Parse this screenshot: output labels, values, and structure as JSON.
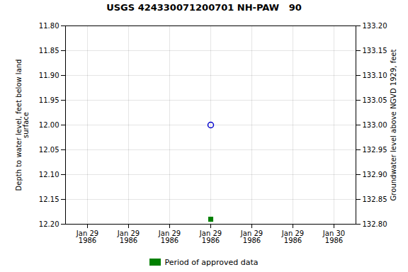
{
  "chart_data": {
    "type": "scatter",
    "title": "USGS 424330071200701 NH-PAW   90",
    "categories": [
      "Jan 29\n1986",
      "Jan 29\n1986",
      "Jan 29\n1986",
      "Jan 29\n1986",
      "Jan 29\n1986",
      "Jan 29\n1986",
      "Jan 30\n1986"
    ],
    "ylabel": "Depth to water level, feet below land\nsurface",
    "y2label": "Groundwater level above NGVD 1929, feet",
    "ylim": [
      12.2,
      11.8
    ],
    "yticks": [
      {
        "value": 11.8,
        "label": "11.80"
      },
      {
        "value": 11.85,
        "label": "11.85"
      },
      {
        "value": 11.9,
        "label": "11.90"
      },
      {
        "value": 11.95,
        "label": "11.95"
      },
      {
        "value": 12.0,
        "label": "12.00"
      },
      {
        "value": 12.05,
        "label": "12.05"
      },
      {
        "value": 12.1,
        "label": "12.10"
      },
      {
        "value": 12.15,
        "label": "12.15"
      },
      {
        "value": 12.2,
        "label": "12.20"
      }
    ],
    "y2lim": [
      132.8,
      133.2
    ],
    "y2ticks": [
      {
        "value": 132.8,
        "label": "132.80"
      },
      {
        "value": 132.85,
        "label": "132.85"
      },
      {
        "value": 132.9,
        "label": "132.90"
      },
      {
        "value": 132.95,
        "label": "132.95"
      },
      {
        "value": 133.0,
        "label": "133.00"
      },
      {
        "value": 133.05,
        "label": "133.05"
      },
      {
        "value": 133.1,
        "label": "133.10"
      },
      {
        "value": 133.15,
        "label": "133.15"
      },
      {
        "value": 133.2,
        "label": "133.20"
      }
    ],
    "series": [
      {
        "color": "#0000CC",
        "marker": "open_circle",
        "values": [
          null,
          null,
          null,
          12.0,
          null,
          null,
          null
        ]
      },
      {
        "name": "Period of approved data",
        "color": "#008000",
        "marker": "square",
        "values": [
          null,
          null,
          null,
          12.19,
          null,
          null,
          null
        ]
      }
    ],
    "grid": true,
    "legend": "bottom"
  }
}
